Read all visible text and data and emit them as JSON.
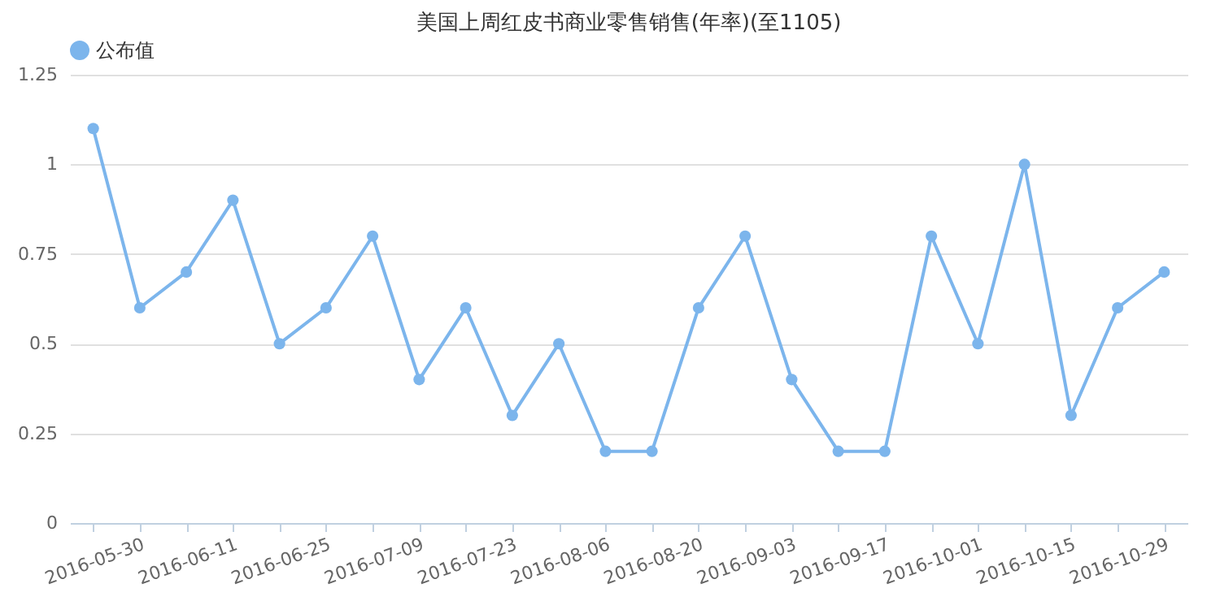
{
  "chart_data": {
    "type": "line",
    "title": "美国上周红皮书商业零售销售(年率)(至1105)",
    "categories": [
      null,
      "2016-05-30",
      null,
      "2016-06-11",
      null,
      "2016-06-25",
      null,
      "2016-07-09",
      null,
      "2016-07-23",
      null,
      "2016-08-06",
      null,
      "2016-08-20",
      null,
      "2016-09-03",
      null,
      "2016-09-17",
      null,
      "2016-10-01",
      null,
      "2016-10-15",
      null,
      "2016-10-29"
    ],
    "series": [
      {
        "name": "公布值",
        "color": "#7cb5ec",
        "values": [
          1.1,
          0.6,
          0.7,
          0.9,
          0.5,
          0.6,
          0.8,
          0.4,
          0.6,
          0.3,
          0.5,
          0.2,
          0.2,
          0.6,
          0.8,
          0.4,
          0.2,
          0.2,
          0.8,
          0.5,
          1.0,
          0.3,
          0.6,
          0.7
        ]
      }
    ],
    "ylim": [
      0,
      1.25
    ],
    "yticks": [
      0,
      0.25,
      0.5,
      0.75,
      1,
      1.25
    ],
    "grid": "y",
    "legend": "top left",
    "marker": "circle",
    "line_style": "solid"
  }
}
